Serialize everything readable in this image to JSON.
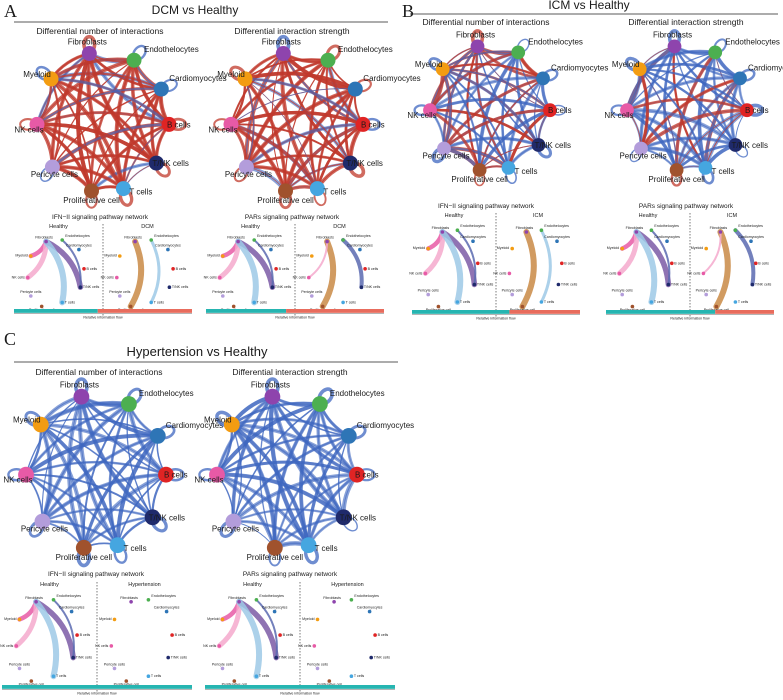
{
  "nodes": [
    {
      "id": "fib",
      "label": "Fibroblasts",
      "color": "#8e44ad"
    },
    {
      "id": "endo",
      "label": "Endothelocytes",
      "color": "#4caf50"
    },
    {
      "id": "cardio",
      "label": "Cardiomyocytes",
      "color": "#2e75b6"
    },
    {
      "id": "bcell",
      "label": "B cells",
      "color": "#e02424"
    },
    {
      "id": "tnk",
      "label": "T/NK cells",
      "color": "#1f2a6b"
    },
    {
      "id": "tcell",
      "label": "T cells",
      "color": "#45a6e0"
    },
    {
      "id": "prolif",
      "label": "Proliferative cell",
      "color": "#a0522d"
    },
    {
      "id": "peri",
      "label": "Pericyte cells",
      "color": "#b39ddb"
    },
    {
      "id": "nk",
      "label": "NK cells",
      "color": "#e75aa6"
    },
    {
      "id": "myeloid",
      "label": "Myeloid",
      "color": "#f39c12"
    }
  ],
  "colors": {
    "increase": "#c0392b",
    "decrease": "#3f67c0",
    "flow_healthy": "#26b5b1",
    "flow_disease": "#e86c5d"
  },
  "panels": [
    {
      "label": "A",
      "title": "DCM vs Healthy",
      "disease": "DCM",
      "net_titles": [
        "Differential number of interactions",
        "Differential interaction strength"
      ],
      "networks": [
        {
          "red_share": 0.75
        },
        {
          "red_share": 0.8
        }
      ],
      "pathway_titles": [
        "IFN−II signaling pathway network",
        "PARs signaling pathway network"
      ],
      "flow_label": "Relative information flow",
      "healthy_label": "Healthy",
      "flows": [
        0.47,
        0.45
      ]
    },
    {
      "label": "B",
      "title": "ICM vs Healthy",
      "disease": "ICM",
      "net_titles": [
        "Differential number of interactions",
        "Differential interaction strength"
      ],
      "networks": [
        {
          "red_share": 0.35
        },
        {
          "red_share": 0.15
        }
      ],
      "pathway_titles": [
        "IFN−II signaling pathway network",
        "PARs signaling pathway network"
      ],
      "flow_label": "Relative information flow",
      "healthy_label": "Healthy",
      "flows": [
        0.58,
        0.65
      ]
    },
    {
      "label": "C",
      "title": "Hypertension vs Healthy",
      "disease": "Hypertension",
      "net_titles": [
        "Differential number of interactions",
        "Differential interaction strength"
      ],
      "networks": [
        {
          "red_share": 0.0
        },
        {
          "red_share": 0.0
        }
      ],
      "pathway_titles": [
        "IFN−II signaling pathway network",
        "PARs signaling pathway network"
      ],
      "flow_label": "Relative information flow",
      "healthy_label": "Healthy",
      "flows": [
        1.0,
        1.0
      ]
    }
  ]
}
